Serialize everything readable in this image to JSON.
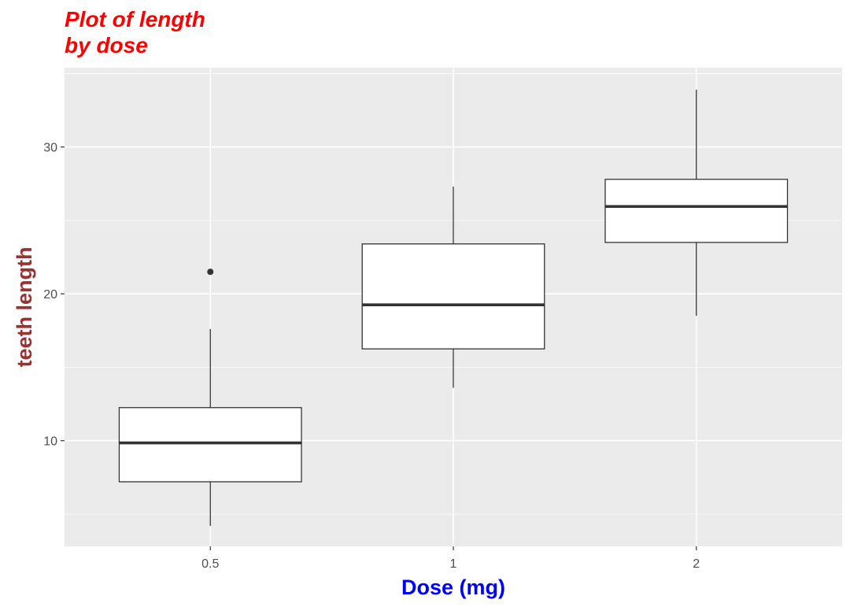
{
  "colors": {
    "title": "#ff0000",
    "xlabel": "#0000ff",
    "ylabel": "#993333",
    "panel": "#ebebeb",
    "grid": "#ffffff",
    "tick_text": "#4d4d4d",
    "box_fill": "#ffffff",
    "box_stroke": "#333333"
  },
  "chart_data": {
    "type": "boxplot",
    "title_lines": [
      "Plot of length",
      "by dose"
    ],
    "xlabel": "Dose (mg)",
    "ylabel": "teeth length",
    "categories": [
      "0.5",
      "1",
      "2"
    ],
    "y_ticks": [
      10,
      20,
      30
    ],
    "y_tick_labels": [
      "10",
      "20",
      "30"
    ],
    "ylim": [
      2.8,
      35.4
    ],
    "grid": true,
    "legend": "none",
    "boxes": [
      {
        "category": "0.5",
        "whisker_low": 4.2,
        "q1": 7.2,
        "median": 9.85,
        "q3": 12.25,
        "whisker_high": 17.6,
        "outliers": [
          21.5
        ]
      },
      {
        "category": "1",
        "whisker_low": 13.6,
        "q1": 16.25,
        "median": 19.25,
        "q3": 23.4,
        "whisker_high": 27.3,
        "outliers": []
      },
      {
        "category": "2",
        "whisker_low": 18.5,
        "q1": 23.5,
        "median": 25.95,
        "q3": 27.8,
        "whisker_high": 33.9,
        "outliers": []
      }
    ]
  }
}
